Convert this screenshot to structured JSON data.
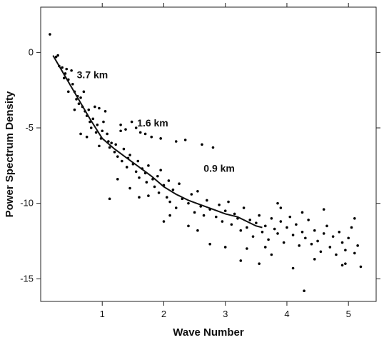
{
  "chart_data": {
    "type": "scatter",
    "title": "",
    "xlabel": "Wave Number",
    "ylabel": "Power Spectrum Density",
    "xlim": [
      0.0,
      5.45
    ],
    "ylim": [
      -16.5,
      3.0
    ],
    "x_ticks": [
      {
        "value": 1,
        "label": "1"
      },
      {
        "value": 2,
        "label": "2"
      },
      {
        "value": 3,
        "label": "3"
      },
      {
        "value": 4,
        "label": "4"
      },
      {
        "value": 5,
        "label": "5"
      }
    ],
    "y_ticks": [
      {
        "value": 0,
        "label": "0"
      },
      {
        "value": -5,
        "label": "-5"
      },
      {
        "value": -10,
        "label": "-10"
      },
      {
        "value": -15,
        "label": "-15"
      }
    ],
    "grid": false,
    "legend": "none",
    "annotations": [
      {
        "text": "3.7 km",
        "x": 0.84,
        "y": -1.7
      },
      {
        "text": "1.6 km",
        "x": 1.82,
        "y": -4.9
      },
      {
        "text": "0.9 km",
        "x": 2.9,
        "y": -7.9
      }
    ],
    "series": [
      {
        "kind": "scatter",
        "points": [
          [
            0.15,
            1.2
          ],
          [
            0.25,
            -0.3
          ],
          [
            0.28,
            -0.2
          ],
          [
            0.3,
            -0.9
          ],
          [
            0.35,
            -1.0
          ],
          [
            0.4,
            -1.4
          ],
          [
            0.42,
            -1.1
          ],
          [
            0.45,
            -1.8
          ],
          [
            0.5,
            -1.2
          ],
          [
            0.52,
            -2.1
          ],
          [
            0.55,
            -2.6
          ],
          [
            0.58,
            -3.1
          ],
          [
            0.6,
            -2.9
          ],
          [
            0.62,
            -3.4
          ],
          [
            0.65,
            -3.0
          ],
          [
            0.68,
            -3.6
          ],
          [
            0.7,
            -2.6
          ],
          [
            0.72,
            -3.9
          ],
          [
            0.75,
            -4.2
          ],
          [
            0.78,
            -3.8
          ],
          [
            0.8,
            -4.6
          ],
          [
            0.82,
            -5.0
          ],
          [
            0.85,
            -4.4
          ],
          [
            0.88,
            -3.6
          ],
          [
            0.9,
            -5.3
          ],
          [
            0.92,
            -4.8
          ],
          [
            0.95,
            -3.7
          ],
          [
            0.98,
            -5.7
          ],
          [
            1.0,
            -5.2
          ],
          [
            1.02,
            -4.6
          ],
          [
            1.05,
            -3.9
          ],
          [
            1.08,
            -5.4
          ],
          [
            1.1,
            -5.9
          ],
          [
            1.12,
            -6.3
          ],
          [
            1.15,
            -6.0
          ],
          [
            1.2,
            -6.6
          ],
          [
            1.22,
            -6.1
          ],
          [
            1.25,
            -6.9
          ],
          [
            1.3,
            -4.8
          ],
          [
            1.32,
            -7.2
          ],
          [
            1.35,
            -6.4
          ],
          [
            1.38,
            -5.1
          ],
          [
            1.4,
            -7.6
          ],
          [
            1.42,
            -7.0
          ],
          [
            1.45,
            -6.8
          ],
          [
            1.48,
            -4.6
          ],
          [
            1.5,
            -7.4
          ],
          [
            1.55,
            -7.9
          ],
          [
            1.58,
            -7.2
          ],
          [
            1.6,
            -8.3
          ],
          [
            1.62,
            -5.3
          ],
          [
            1.65,
            -7.7
          ],
          [
            1.7,
            -8.0
          ],
          [
            1.72,
            -8.6
          ],
          [
            1.75,
            -7.5
          ],
          [
            1.8,
            -5.6
          ],
          [
            1.82,
            -8.4
          ],
          [
            1.85,
            -8.9
          ],
          [
            1.9,
            -8.2
          ],
          [
            1.92,
            -9.3
          ],
          [
            1.95,
            -7.8
          ],
          [
            2.0,
            -8.8
          ],
          [
            2.05,
            -9.6
          ],
          [
            2.08,
            -8.5
          ],
          [
            2.1,
            -9.9
          ],
          [
            2.15,
            -9.1
          ],
          [
            2.2,
            -10.3
          ],
          [
            2.25,
            -8.7
          ],
          [
            2.3,
            -9.7
          ],
          [
            2.35,
            -5.8
          ],
          [
            2.4,
            -10.0
          ],
          [
            2.45,
            -9.4
          ],
          [
            2.5,
            -10.6
          ],
          [
            2.55,
            -9.2
          ],
          [
            2.6,
            -10.2
          ],
          [
            2.62,
            -6.1
          ],
          [
            2.65,
            -10.8
          ],
          [
            2.7,
            -9.8
          ],
          [
            2.75,
            -10.4
          ],
          [
            2.8,
            -6.3
          ],
          [
            2.85,
            -10.9
          ],
          [
            2.9,
            -10.1
          ],
          [
            2.95,
            -11.2
          ],
          [
            3.0,
            -10.5
          ],
          [
            3.05,
            -9.9
          ],
          [
            3.1,
            -11.4
          ],
          [
            3.15,
            -10.7
          ],
          [
            3.2,
            -11.0
          ],
          [
            3.25,
            -11.8
          ],
          [
            3.3,
            -10.3
          ],
          [
            3.35,
            -11.6
          ],
          [
            3.4,
            -11.1
          ],
          [
            3.45,
            -12.2
          ],
          [
            3.5,
            -11.3
          ],
          [
            3.55,
            -10.8
          ],
          [
            3.6,
            -11.9
          ],
          [
            3.65,
            -11.5
          ],
          [
            3.7,
            -12.4
          ],
          [
            3.75,
            -11.0
          ],
          [
            3.8,
            -11.7
          ],
          [
            3.85,
            -12.0
          ],
          [
            3.9,
            -11.2
          ],
          [
            3.95,
            -12.6
          ],
          [
            4.0,
            -11.6
          ],
          [
            4.05,
            -10.9
          ],
          [
            4.1,
            -12.1
          ],
          [
            4.15,
            -11.4
          ],
          [
            4.2,
            -12.8
          ],
          [
            4.25,
            -11.9
          ],
          [
            4.3,
            -12.3
          ],
          [
            4.35,
            -11.1
          ],
          [
            4.4,
            -12.7
          ],
          [
            4.45,
            -11.8
          ],
          [
            4.5,
            -12.5
          ],
          [
            4.55,
            -13.2
          ],
          [
            4.6,
            -12.0
          ],
          [
            4.65,
            -11.5
          ],
          [
            4.7,
            -12.9
          ],
          [
            4.75,
            -12.2
          ],
          [
            4.8,
            -13.4
          ],
          [
            4.85,
            -11.9
          ],
          [
            4.9,
            -12.6
          ],
          [
            4.95,
            -13.1
          ],
          [
            5.0,
            -12.3
          ],
          [
            5.05,
            -11.6
          ],
          [
            5.1,
            -13.3
          ],
          [
            5.15,
            -12.8
          ],
          [
            5.2,
            -14.2
          ],
          [
            4.28,
            -15.8
          ],
          [
            3.55,
            -14.0
          ],
          [
            3.25,
            -13.8
          ],
          [
            4.1,
            -14.3
          ],
          [
            4.9,
            -14.1
          ],
          [
            1.12,
            -9.7
          ],
          [
            1.45,
            -9.0
          ],
          [
            2.75,
            -12.7
          ],
          [
            3.85,
            -10.0
          ],
          [
            4.6,
            -10.4
          ],
          [
            1.75,
            -9.5
          ],
          [
            2.4,
            -11.5
          ],
          [
            0.65,
            -5.4
          ],
          [
            0.75,
            -5.6
          ],
          [
            1.25,
            -8.4
          ],
          [
            2.0,
            -11.2
          ],
          [
            3.0,
            -12.9
          ],
          [
            1.3,
            -5.2
          ],
          [
            1.55,
            -5.0
          ],
          [
            1.7,
            -5.4
          ],
          [
            1.95,
            -5.7
          ],
          [
            2.2,
            -5.9
          ],
          [
            3.35,
            -13.0
          ],
          [
            2.55,
            -11.8
          ],
          [
            3.75,
            -13.4
          ],
          [
            4.45,
            -13.7
          ],
          [
            5.1,
            -11.0
          ],
          [
            3.9,
            -10.3
          ],
          [
            4.25,
            -10.6
          ],
          [
            2.1,
            -10.8
          ],
          [
            1.6,
            -9.6
          ],
          [
            0.95,
            -6.2
          ],
          [
            0.55,
            -3.8
          ],
          [
            0.45,
            -2.6
          ],
          [
            0.38,
            -1.7
          ],
          [
            3.65,
            -12.9
          ],
          [
            4.95,
            -14.0
          ]
        ]
      },
      {
        "kind": "line",
        "points": [
          [
            0.2,
            -0.2
          ],
          [
            0.4,
            -1.6
          ],
          [
            0.6,
            -3.0
          ],
          [
            0.8,
            -4.4
          ],
          [
            1.0,
            -5.7
          ],
          [
            1.2,
            -6.4
          ],
          [
            1.4,
            -7.0
          ],
          [
            1.6,
            -7.6
          ],
          [
            1.8,
            -8.2
          ],
          [
            2.0,
            -8.9
          ],
          [
            2.2,
            -9.4
          ],
          [
            2.4,
            -9.8
          ],
          [
            2.6,
            -10.1
          ],
          [
            2.8,
            -10.4
          ],
          [
            3.0,
            -10.7
          ],
          [
            3.2,
            -10.9
          ],
          [
            3.4,
            -11.3
          ],
          [
            3.5,
            -11.5
          ],
          [
            3.6,
            -11.6
          ]
        ]
      }
    ]
  }
}
